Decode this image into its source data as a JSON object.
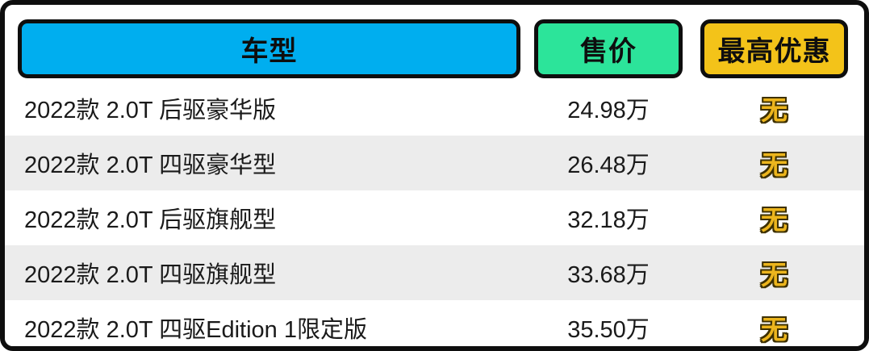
{
  "table": {
    "columns": [
      {
        "key": "model",
        "label": "车型",
        "header_bg": "#00aeef"
      },
      {
        "key": "price",
        "label": "售价",
        "header_bg": "#2ce49a"
      },
      {
        "key": "discount",
        "label": "最高优惠",
        "header_bg": "#f3c319"
      }
    ],
    "rows": [
      {
        "model": "2022款 2.0T 后驱豪华版",
        "price": "24.98万",
        "discount": "无"
      },
      {
        "model": "2022款 2.0T 四驱豪华型",
        "price": "26.48万",
        "discount": "无"
      },
      {
        "model": "2022款 2.0T 后驱旗舰型",
        "price": "32.18万",
        "discount": "无"
      },
      {
        "model": "2022款 2.0T 四驱旗舰型",
        "price": "33.68万",
        "discount": "无"
      },
      {
        "model": "2022款 2.0T 四驱Edition 1限定版",
        "price": "35.50万",
        "discount": "无"
      }
    ],
    "colors": {
      "frame_border": "#0e0e0e",
      "row_alt_bg": "#ececec",
      "discount_text": "#ecb51d",
      "discount_outline": "#3d3000",
      "body_text": "#1a1a1a"
    }
  }
}
